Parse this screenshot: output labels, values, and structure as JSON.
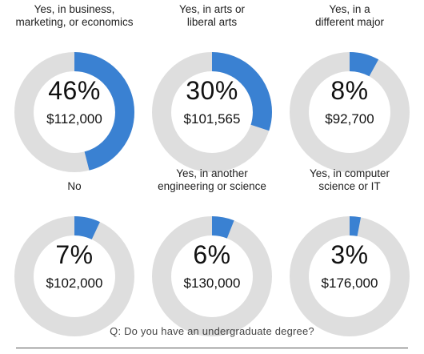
{
  "chart_data": {
    "type": "donut-grid",
    "colors": {
      "filled": "#3a81d2",
      "track": "#dedede"
    },
    "items": [
      {
        "label": [
          "Yes, in business,",
          "marketing, or economics"
        ],
        "percent": 46,
        "percent_text": "46%",
        "salary_text": "$112,000"
      },
      {
        "label": [
          "Yes, in arts or",
          "liberal arts"
        ],
        "percent": 30,
        "percent_text": "30%",
        "salary_text": "$101,565"
      },
      {
        "label": [
          "Yes, in a",
          "different major"
        ],
        "percent": 8,
        "percent_text": "8%",
        "salary_text": "$92,700"
      },
      {
        "label": [
          "No"
        ],
        "percent": 7,
        "percent_text": "7%",
        "salary_text": "$102,000"
      },
      {
        "label": [
          "Yes, in another",
          "engineering or science"
        ],
        "percent": 6,
        "percent_text": "6%",
        "salary_text": "$130,000"
      },
      {
        "label": [
          "Yes, in computer",
          "science or IT"
        ],
        "percent": 3,
        "percent_text": "3%",
        "salary_text": "$176,000"
      }
    ]
  },
  "footer": {
    "question": "Q: Do you have an undergraduate degree?"
  }
}
